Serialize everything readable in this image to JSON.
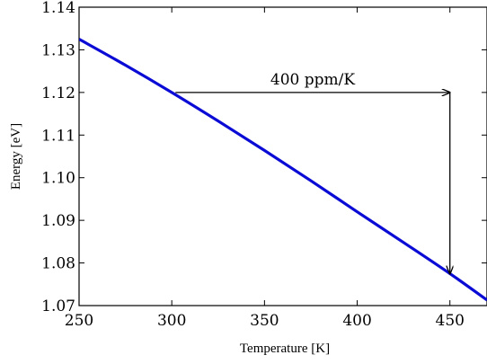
{
  "chart_data": {
    "type": "line",
    "title": "",
    "xlabel": "Temperature [K]",
    "ylabel": "Energy [eV]",
    "xlim": [
      250,
      470
    ],
    "ylim": [
      1.07,
      1.14
    ],
    "x_ticks": [
      250,
      300,
      350,
      400,
      450
    ],
    "x_tick_labels": [
      "250",
      "300",
      "350",
      "400",
      "450"
    ],
    "y_ticks": [
      1.07,
      1.08,
      1.09,
      1.1,
      1.11,
      1.12,
      1.13,
      1.14
    ],
    "y_tick_labels": [
      "1.07",
      "1.08",
      "1.09",
      "1.10",
      "1.11",
      "1.12",
      "1.13",
      "1.14"
    ],
    "grid": false,
    "series": [
      {
        "color": "#0b0bd6",
        "x": [
          250,
          275,
          300,
          325,
          350,
          375,
          400,
          425,
          450,
          470
        ],
        "y": [
          1.1325,
          1.1264,
          1.12,
          1.1133,
          1.1064,
          1.0993,
          1.092,
          1.0848,
          1.0775,
          1.0713
        ]
      }
    ],
    "annotations": [
      {
        "text": "400 ppm/K",
        "arrow_horizontal": {
          "from": [
            302,
            1.12
          ],
          "to": [
            450,
            1.12
          ]
        },
        "arrow_vertical": {
          "from": [
            450,
            1.12
          ],
          "to": [
            450,
            1.0775
          ]
        }
      }
    ]
  }
}
